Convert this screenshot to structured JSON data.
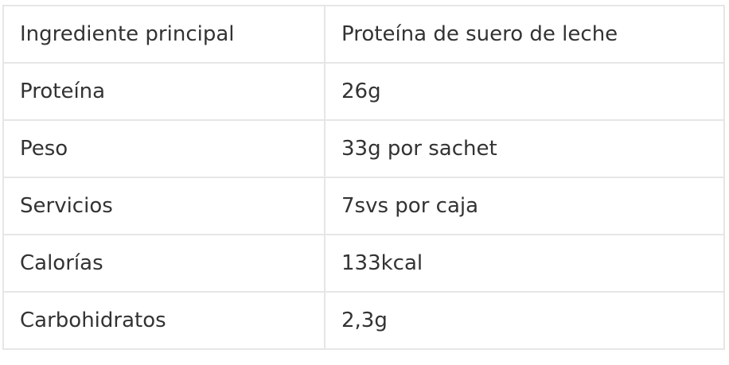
{
  "table": {
    "rows": [
      {
        "label": "Ingrediente principal",
        "value": "Proteína de suero de leche"
      },
      {
        "label": "Proteína",
        "value": "26g"
      },
      {
        "label": "Peso",
        "value": "33g por sachet"
      },
      {
        "label": "Servicios",
        "value": "7svs por caja"
      },
      {
        "label": "Calorías",
        "value": "133kcal"
      },
      {
        "label": "Carbohidratos",
        "value": "2,3g"
      }
    ]
  }
}
